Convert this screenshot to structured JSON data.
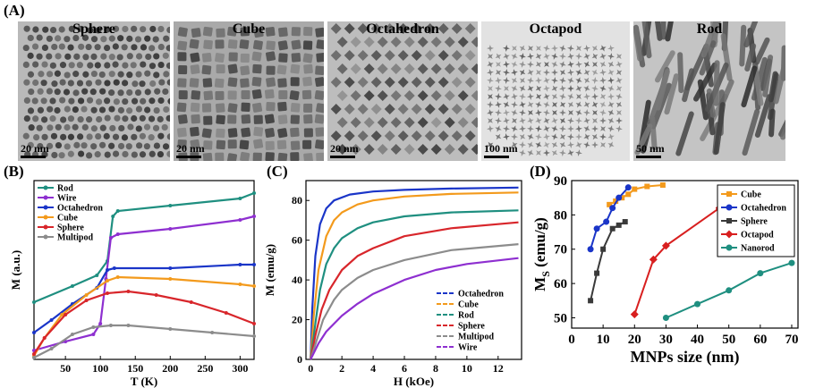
{
  "panels": {
    "a": "(A)",
    "b": "(B)",
    "c": "(C)",
    "d": "(D)"
  },
  "tem_images": [
    {
      "title": "Sphere",
      "scale": "20 nm"
    },
    {
      "title": "Cube",
      "scale": "20 nm"
    },
    {
      "title": "Octahedron",
      "scale": "20 nm"
    },
    {
      "title": "Octapod",
      "scale": "100 nm"
    },
    {
      "title": "Rod",
      "scale": "50 nm"
    }
  ],
  "colors": {
    "rod": "#1f8f80",
    "wire": "#8e2fd0",
    "octahedron": "#1a35c8",
    "cube": "#f39a1c",
    "sphere": "#d8262b",
    "multipod": "#8c8c8c",
    "sphere_d": "#3a3a3a",
    "octapod": "#d81f1f",
    "nanorod": "#1f8f80"
  },
  "chart_data": [
    {
      "type": "line",
      "panel": "B",
      "xlabel": "T (K)",
      "ylabel": "M (a.u.)",
      "xlim": [
        5,
        320
      ],
      "ylim": [
        0,
        1
      ],
      "xticks": [
        "50",
        "100",
        "150",
        "200",
        "250",
        "300"
      ],
      "xtick_values": [
        50,
        100,
        150,
        200,
        250,
        300
      ],
      "legend": [
        "Rod",
        "Wire",
        "Octahedron",
        "Cube",
        "Sphere",
        "Multipod"
      ],
      "series": [
        {
          "name": "Rod",
          "color_key": "rod",
          "x": [
            5,
            60,
            95,
            110,
            118,
            125,
            200,
            300,
            320
          ],
          "y": [
            0.32,
            0.41,
            0.47,
            0.55,
            0.8,
            0.83,
            0.86,
            0.9,
            0.93
          ]
        },
        {
          "name": "Wire",
          "color_key": "wire",
          "x": [
            5,
            50,
            90,
            100,
            108,
            115,
            125,
            200,
            300,
            320
          ],
          "y": [
            0.05,
            0.1,
            0.14,
            0.2,
            0.45,
            0.68,
            0.7,
            0.73,
            0.78,
            0.8
          ]
        },
        {
          "name": "Octahedron",
          "color_key": "octahedron",
          "x": [
            5,
            30,
            60,
            95,
            110,
            120,
            200,
            300,
            320
          ],
          "y": [
            0.15,
            0.22,
            0.31,
            0.4,
            0.5,
            0.51,
            0.51,
            0.53,
            0.53
          ]
        },
        {
          "name": "Cube",
          "color_key": "cube",
          "x": [
            5,
            20,
            45,
            80,
            110,
            125,
            200,
            300,
            320
          ],
          "y": [
            0.02,
            0.12,
            0.25,
            0.36,
            0.44,
            0.46,
            0.45,
            0.42,
            0.41
          ]
        },
        {
          "name": "Sphere",
          "color_key": "sphere",
          "x": [
            5,
            20,
            50,
            80,
            110,
            140,
            180,
            230,
            280,
            320
          ],
          "y": [
            0.03,
            0.12,
            0.25,
            0.33,
            0.37,
            0.38,
            0.36,
            0.32,
            0.26,
            0.2
          ]
        },
        {
          "name": "Multipod",
          "color_key": "multipod",
          "x": [
            5,
            30,
            60,
            90,
            115,
            140,
            200,
            260,
            320
          ],
          "y": [
            0.01,
            0.06,
            0.14,
            0.18,
            0.19,
            0.19,
            0.17,
            0.15,
            0.13
          ]
        }
      ]
    },
    {
      "type": "line",
      "panel": "C",
      "xlabel": "H (kOe)",
      "ylabel": "M (emu/g)",
      "xlim": [
        -0.3,
        13.5
      ],
      "ylim": [
        0,
        90
      ],
      "xticks": [
        "0",
        "2",
        "4",
        "6",
        "8",
        "10",
        "12"
      ],
      "xtick_values": [
        0,
        2,
        4,
        6,
        8,
        10,
        12
      ],
      "yticks": [
        "0",
        "20",
        "40",
        "60",
        "80"
      ],
      "ytick_values": [
        0,
        20,
        40,
        60,
        80
      ],
      "legend": [
        "Octahedron",
        "Cube",
        "Rod",
        "Sphere",
        "Multipod",
        "Wire"
      ],
      "series": [
        {
          "name": "Octahedron",
          "color_key": "octahedron",
          "x": [
            0,
            0.1,
            0.3,
            0.6,
            1.0,
            1.5,
            2.5,
            4,
            6,
            9,
            13.3
          ],
          "y": [
            0,
            25,
            52,
            68,
            76,
            80,
            83,
            84.5,
            85.3,
            86,
            86.5
          ]
        },
        {
          "name": "Cube",
          "color_key": "cube",
          "x": [
            0,
            0.2,
            0.5,
            1.0,
            1.5,
            2,
            3,
            4,
            6,
            9,
            13.3
          ],
          "y": [
            0,
            22,
            45,
            62,
            70,
            74,
            78,
            80,
            82,
            83.3,
            84
          ]
        },
        {
          "name": "Rod",
          "color_key": "rod",
          "x": [
            0,
            0.3,
            0.6,
            1.0,
            1.5,
            2,
            3,
            4,
            6,
            9,
            13.3
          ],
          "y": [
            0,
            18,
            35,
            48,
            56,
            61,
            66,
            69,
            72,
            74,
            75
          ]
        },
        {
          "name": "Sphere",
          "color_key": "sphere",
          "x": [
            0,
            0.3,
            0.7,
            1.2,
            2,
            3,
            4,
            6,
            9,
            13.3
          ],
          "y": [
            0,
            12,
            25,
            35,
            45,
            52,
            56,
            62,
            66,
            69
          ]
        },
        {
          "name": "Multipod",
          "color_key": "multipod",
          "x": [
            0,
            0.4,
            0.8,
            1.5,
            2,
            3,
            4,
            6,
            9,
            13.3
          ],
          "y": [
            0,
            10,
            20,
            30,
            35,
            41,
            45,
            50,
            55,
            58
          ]
        },
        {
          "name": "Wire",
          "color_key": "wire",
          "x": [
            0,
            0.5,
            1,
            2,
            3,
            4,
            6,
            8,
            10,
            13.3
          ],
          "y": [
            0,
            8,
            14,
            22,
            28,
            33,
            40,
            45,
            48,
            51
          ]
        }
      ]
    },
    {
      "type": "line",
      "panel": "D",
      "xlabel": "MNPs size (nm)",
      "ylabel_main": "M",
      "ylabel_sub": "S",
      "ylabel_unit": "(emu/g)",
      "xlim": [
        0,
        72
      ],
      "ylim": [
        47,
        90
      ],
      "xticks": [
        "0",
        "10",
        "20",
        "30",
        "40",
        "50",
        "60",
        "70"
      ],
      "xtick_values": [
        0,
        10,
        20,
        30,
        40,
        50,
        60,
        70
      ],
      "yticks": [
        "50",
        "60",
        "70",
        "80",
        "90"
      ],
      "ytick_values": [
        50,
        60,
        70,
        80,
        90
      ],
      "legend": [
        "Cube",
        "Octahedron",
        "Sphere",
        "Octapod",
        "Nanorod"
      ],
      "series": [
        {
          "name": "Cube",
          "color_key": "cube",
          "marker": "square",
          "x": [
            12,
            14,
            16,
            18,
            20,
            24,
            29
          ],
          "y": [
            83,
            84,
            85,
            86,
            87.5,
            88.3,
            88.7
          ]
        },
        {
          "name": "Octahedron",
          "color_key": "octahedron",
          "marker": "circle",
          "x": [
            6,
            8,
            11,
            13,
            15,
            18
          ],
          "y": [
            70,
            76,
            78,
            82,
            85,
            88
          ]
        },
        {
          "name": "Sphere",
          "color_key": "sphere_d",
          "marker": "square",
          "x": [
            6,
            8,
            10,
            13,
            15,
            17
          ],
          "y": [
            55,
            63,
            70,
            76,
            77,
            78
          ]
        },
        {
          "name": "Octapod",
          "color_key": "octapod",
          "marker": "diamond",
          "x": [
            20,
            26,
            30,
            47
          ],
          "y": [
            51,
            67,
            71,
            82
          ]
        },
        {
          "name": "Nanorod",
          "color_key": "nanorod",
          "marker": "circle",
          "x": [
            30,
            40,
            50,
            60,
            70
          ],
          "y": [
            50,
            54,
            58,
            63,
            66
          ]
        }
      ]
    }
  ]
}
